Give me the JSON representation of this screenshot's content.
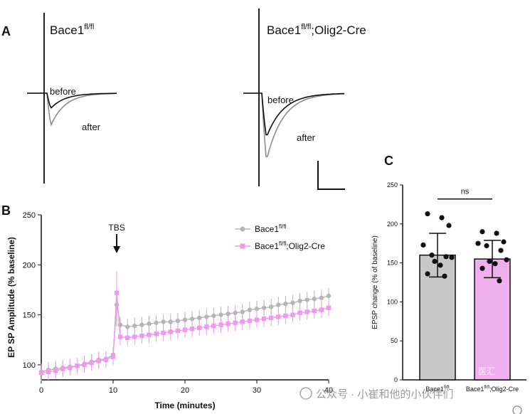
{
  "panels": {
    "A": "A",
    "B": "B",
    "C": "C"
  },
  "traces": {
    "left_title_base": "Bace1",
    "left_title_sup": "fl/fl",
    "right_title_base": "Bace1",
    "right_title_sup": "fl/fl",
    "right_title_suffix": ";Olig2-Cre",
    "before_label": "before",
    "after_label": "after",
    "before_color": "#111111",
    "after_color": "#8c8c8c"
  },
  "chart_data": [
    {
      "type": "line",
      "panel": "B",
      "xlabel": "Time (minutes)",
      "ylabel": "EP SP Amplitude (% baseline)",
      "xlim": [
        0,
        40
      ],
      "ylim": [
        85,
        250
      ],
      "xticks": [
        0,
        10,
        20,
        30,
        40
      ],
      "yticks": [
        100,
        150,
        200,
        250
      ],
      "annotation": "TBS",
      "annotation_x": 10.5,
      "legend_position": "top-right",
      "series": [
        {
          "name": "Bace1",
          "name_sup": "fl/fl",
          "color": "#b5b5b5",
          "marker": "circle",
          "points": [
            [
              0,
              93
            ],
            [
              1,
              95
            ],
            [
              2,
              96
            ],
            [
              3,
              97
            ],
            [
              4,
              98
            ],
            [
              5,
              99
            ],
            [
              6,
              101
            ],
            [
              7,
              103
            ],
            [
              8,
              105
            ],
            [
              9,
              106
            ],
            [
              10,
              110
            ],
            [
              10.5,
              160
            ],
            [
              11,
              140
            ],
            [
              12,
              138
            ],
            [
              13,
              139
            ],
            [
              14,
              140
            ],
            [
              15,
              141
            ],
            [
              16,
              142
            ],
            [
              17,
              143
            ],
            [
              18,
              143
            ],
            [
              19,
              144
            ],
            [
              20,
              145
            ],
            [
              21,
              146
            ],
            [
              22,
              147
            ],
            [
              23,
              148
            ],
            [
              24,
              149
            ],
            [
              25,
              150
            ],
            [
              26,
              151
            ],
            [
              27,
              152
            ],
            [
              28,
              153
            ],
            [
              29,
              155
            ],
            [
              30,
              156
            ],
            [
              31,
              157
            ],
            [
              32,
              158
            ],
            [
              33,
              160
            ],
            [
              34,
              161
            ],
            [
              35,
              162
            ],
            [
              36,
              164
            ],
            [
              37,
              165
            ],
            [
              38,
              166
            ],
            [
              39,
              167
            ],
            [
              40,
              169
            ]
          ]
        },
        {
          "name": "Bace1",
          "name_sup": "fl/fl",
          "name_suffix": ";Olig2-Cre",
          "color": "#ee99ee",
          "marker": "square",
          "points": [
            [
              0,
              92
            ],
            [
              1,
              93
            ],
            [
              2,
              94
            ],
            [
              3,
              96
            ],
            [
              4,
              97
            ],
            [
              5,
              99
            ],
            [
              6,
              100
            ],
            [
              7,
              102
            ],
            [
              8,
              104
            ],
            [
              9,
              105
            ],
            [
              10,
              108
            ],
            [
              10.5,
              172
            ],
            [
              11,
              128
            ],
            [
              12,
              127
            ],
            [
              13,
              128
            ],
            [
              14,
              129
            ],
            [
              15,
              130
            ],
            [
              16,
              131
            ],
            [
              17,
              132
            ],
            [
              18,
              133
            ],
            [
              19,
              134
            ],
            [
              20,
              135
            ],
            [
              21,
              136
            ],
            [
              22,
              137
            ],
            [
              23,
              138
            ],
            [
              24,
              139
            ],
            [
              25,
              140
            ],
            [
              26,
              141
            ],
            [
              27,
              142
            ],
            [
              28,
              143
            ],
            [
              29,
              144
            ],
            [
              30,
              145
            ],
            [
              31,
              146
            ],
            [
              32,
              147
            ],
            [
              33,
              148
            ],
            [
              34,
              149
            ],
            [
              35,
              150
            ],
            [
              36,
              152
            ],
            [
              37,
              153
            ],
            [
              38,
              154
            ],
            [
              39,
              155
            ],
            [
              40,
              157
            ]
          ]
        }
      ]
    },
    {
      "type": "bar",
      "panel": "C",
      "ylabel": "EPSP change (% of baseline)",
      "ylim": [
        0,
        250
      ],
      "yticks": [
        0,
        50,
        100,
        150,
        200,
        250
      ],
      "significance": "ns",
      "categories": [
        {
          "base": "Bace1",
          "sup": "fl/fl",
          "suffix": ""
        },
        {
          "base": "Bace1",
          "sup": "fl/fl",
          "suffix": ";Olig2-Cre"
        }
      ],
      "values": [
        160,
        155
      ],
      "errors": [
        28,
        24
      ],
      "colors": [
        "#c8c8c8",
        "#f0b0ee"
      ],
      "points": [
        [
          213,
          208,
          198,
          173,
          160,
          158,
          157,
          152,
          147,
          136,
          133
        ],
        [
          190,
          188,
          177,
          175,
          172,
          166,
          154,
          152,
          149,
          143,
          127
        ]
      ]
    }
  ],
  "watermark": {
    "text": "公众号 · 小崔和他的小伙伴们",
    "badge": "医汇"
  }
}
